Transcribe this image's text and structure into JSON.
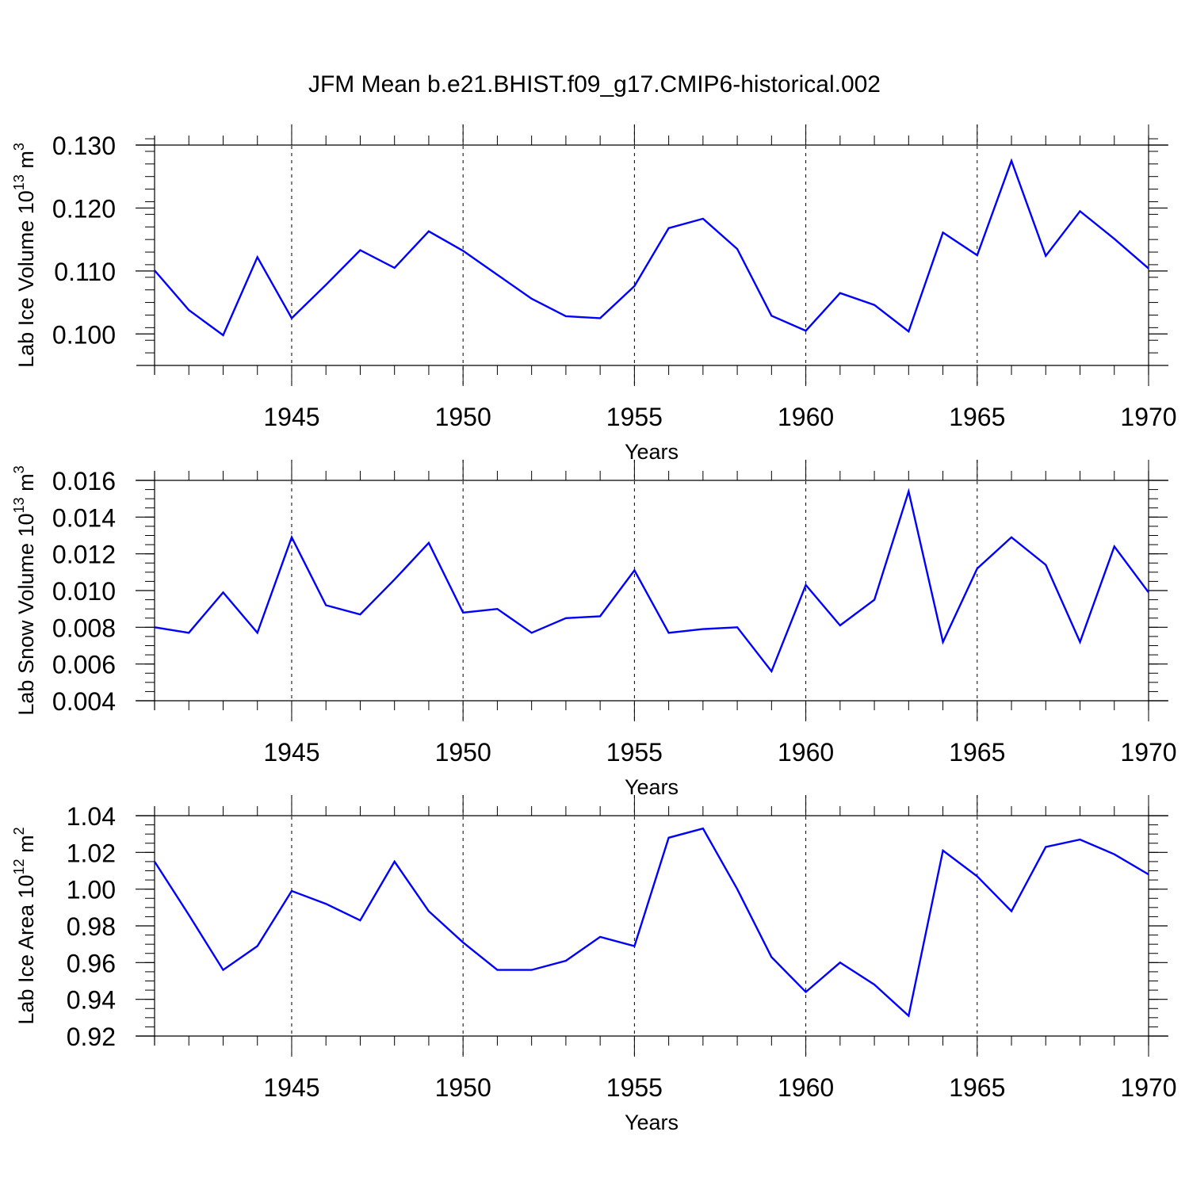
{
  "figure": {
    "title": "JFM Mean b.e21.BHIST.f09_g17.CMIP6-historical.002",
    "line_color": "#0000ff"
  },
  "chart_data": [
    {
      "type": "line",
      "ylabel_main": "Lab Ice Volume 10",
      "ylabel_exp": "13",
      "ylabel_unit": " m",
      "ylabel_unit_exp": "3",
      "xlabel": "Years",
      "xlim": [
        1941,
        1970
      ],
      "ylim": [
        0.095,
        0.13
      ],
      "yticks": [
        0.1,
        0.11,
        0.12,
        0.13
      ],
      "ytick_labels": [
        "0.100",
        "0.110",
        "0.120",
        "0.130"
      ],
      "yminor_step": 0.002,
      "xticks": [
        1945,
        1950,
        1955,
        1960,
        1965,
        1970
      ],
      "xtick_labels": [
        "1945",
        "1950",
        "1955",
        "1960",
        "1965",
        "1970"
      ],
      "x": [
        1941,
        1942,
        1943,
        1944,
        1945,
        1946,
        1947,
        1948,
        1949,
        1950,
        1951,
        1952,
        1953,
        1954,
        1955,
        1956,
        1957,
        1958,
        1959,
        1960,
        1961,
        1962,
        1963,
        1964,
        1965,
        1966,
        1967,
        1968,
        1969,
        1970
      ],
      "series": [
        {
          "name": "Lab Ice Volume",
          "values": [
            0.1101,
            0.1038,
            0.0998,
            0.1122,
            0.1025,
            0.1078,
            0.1133,
            0.1105,
            0.1163,
            0.1132,
            0.1094,
            0.1056,
            0.1028,
            0.1025,
            0.1076,
            0.1168,
            0.1183,
            0.1135,
            0.1029,
            0.1005,
            0.1065,
            0.1046,
            0.1004,
            0.1161,
            0.1125,
            0.1275,
            0.1124,
            0.1195,
            0.1151,
            0.1104
          ]
        }
      ]
    },
    {
      "type": "line",
      "ylabel_main": "Lab Snow Volume 10",
      "ylabel_exp": "13",
      "ylabel_unit": " m",
      "ylabel_unit_exp": "3",
      "xlabel": "Years",
      "xlim": [
        1941,
        1970
      ],
      "ylim": [
        0.004,
        0.016
      ],
      "yticks": [
        0.004,
        0.006,
        0.008,
        0.01,
        0.012,
        0.014,
        0.016
      ],
      "ytick_labels": [
        "0.004",
        "0.006",
        "0.008",
        "0.010",
        "0.012",
        "0.014",
        "0.016"
      ],
      "yminor_step": 0.0005,
      "xticks": [
        1945,
        1950,
        1955,
        1960,
        1965,
        1970
      ],
      "xtick_labels": [
        "1945",
        "1950",
        "1955",
        "1960",
        "1965",
        "1970"
      ],
      "x": [
        1941,
        1942,
        1943,
        1944,
        1945,
        1946,
        1947,
        1948,
        1949,
        1950,
        1951,
        1952,
        1953,
        1954,
        1955,
        1956,
        1957,
        1958,
        1959,
        1960,
        1961,
        1962,
        1963,
        1964,
        1965,
        1966,
        1967,
        1968,
        1969,
        1970
      ],
      "series": [
        {
          "name": "Lab Snow Volume",
          "values": [
            0.008,
            0.0077,
            0.0099,
            0.0077,
            0.0129,
            0.0092,
            0.0087,
            0.0106,
            0.0126,
            0.0088,
            0.009,
            0.0077,
            0.0085,
            0.0086,
            0.0111,
            0.0077,
            0.0079,
            0.008,
            0.0056,
            0.0103,
            0.0081,
            0.0095,
            0.0154,
            0.0072,
            0.0112,
            0.0129,
            0.0114,
            0.0072,
            0.0124,
            0.0099
          ]
        }
      ]
    },
    {
      "type": "line",
      "ylabel_main": "Lab Ice Area 10",
      "ylabel_exp": "12",
      "ylabel_unit": " m",
      "ylabel_unit_exp": "2",
      "xlabel": "Years",
      "xlim": [
        1941,
        1970
      ],
      "ylim": [
        0.92,
        1.04
      ],
      "yticks": [
        0.92,
        0.94,
        0.96,
        0.98,
        1.0,
        1.02,
        1.04
      ],
      "ytick_labels": [
        "0.92",
        "0.94",
        "0.96",
        "0.98",
        "1.00",
        "1.02",
        "1.04"
      ],
      "yminor_step": 0.005,
      "xticks": [
        1945,
        1950,
        1955,
        1960,
        1965,
        1970
      ],
      "xtick_labels": [
        "1945",
        "1950",
        "1955",
        "1960",
        "1965",
        "1970"
      ],
      "x": [
        1941,
        1942,
        1943,
        1944,
        1945,
        1946,
        1947,
        1948,
        1949,
        1950,
        1951,
        1952,
        1953,
        1954,
        1955,
        1956,
        1957,
        1958,
        1959,
        1960,
        1961,
        1962,
        1963,
        1964,
        1965,
        1966,
        1967,
        1968,
        1969,
        1970
      ],
      "series": [
        {
          "name": "Lab Ice Area",
          "values": [
            1.015,
            0.986,
            0.956,
            0.969,
            0.999,
            0.992,
            0.983,
            1.015,
            0.988,
            0.971,
            0.956,
            0.956,
            0.961,
            0.974,
            0.969,
            1.028,
            1.033,
            1.0,
            0.963,
            0.944,
            0.96,
            0.948,
            0.931,
            1.021,
            1.007,
            0.988,
            1.023,
            1.027,
            1.019,
            1.008
          ]
        }
      ]
    }
  ]
}
